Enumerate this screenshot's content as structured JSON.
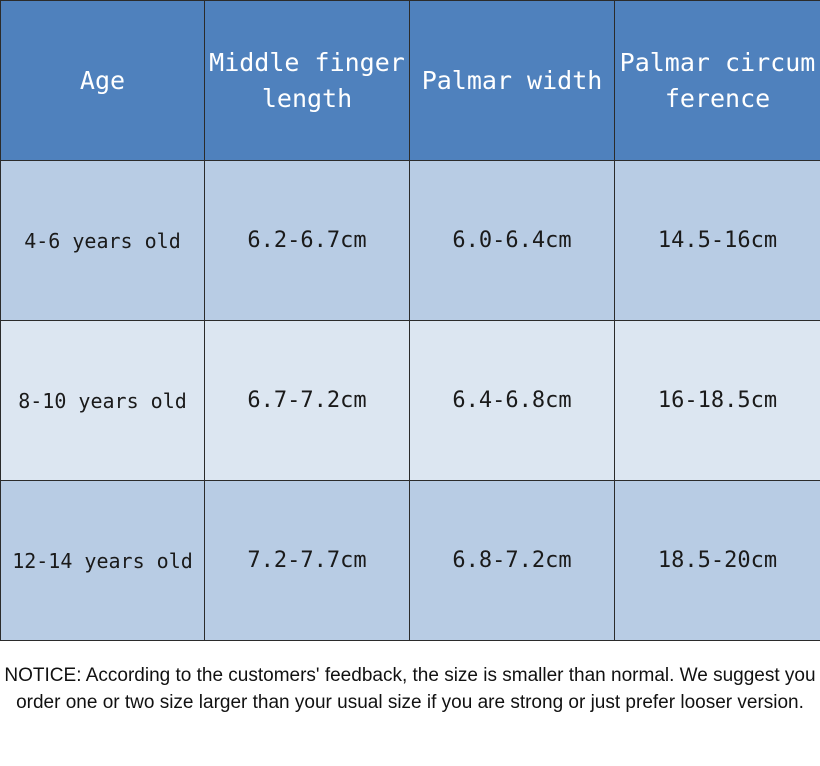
{
  "table": {
    "headers": [
      "Age",
      "Middle finger length",
      "Palmar width",
      "Palmar circumference"
    ],
    "rows": [
      [
        "4-6 years old",
        "6.2-6.7cm",
        "6.0-6.4cm",
        "14.5-16cm"
      ],
      [
        "8-10 years old",
        "6.7-7.2cm",
        "6.4-6.8cm",
        "16-18.5cm"
      ],
      [
        "12-14 years old",
        "7.2-7.7cm",
        "6.8-7.2cm",
        "18.5-20cm"
      ]
    ]
  },
  "notice": "NOTICE: According to the customers' feedback, the size is smaller than normal. We suggest you order one or two size larger than your usual size if you are strong or just prefer looser version.",
  "colors": {
    "header_bg": "#4f81bd",
    "row_dark_bg": "#b8cce4",
    "row_light_bg": "#dce6f1"
  }
}
